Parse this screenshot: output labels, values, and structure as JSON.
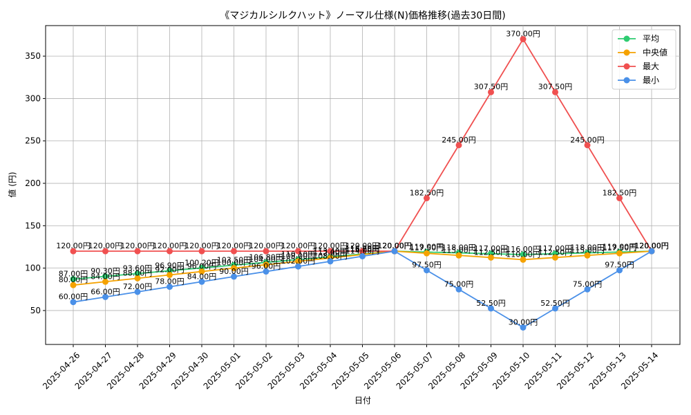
{
  "chart_data": {
    "type": "line",
    "title": "《マジカルシルクハット》ノーマル仕様(N)価格推移(過去30日間)",
    "xlabel": "日付",
    "ylabel": "値 (円)",
    "categories": [
      "2025-04-26",
      "2025-04-27",
      "2025-04-28",
      "2025-04-29",
      "2025-04-30",
      "2025-05-01",
      "2025-05-02",
      "2025-05-03",
      "2025-05-04",
      "2025-05-05",
      "2025-05-06",
      "2025-05-07",
      "2025-05-08",
      "2025-05-09",
      "2025-05-10",
      "2025-05-11",
      "2025-05-12",
      "2025-05-13",
      "2025-05-14"
    ],
    "ylim": [
      10,
      386
    ],
    "yticks": [
      50,
      100,
      150,
      200,
      250,
      300,
      350
    ],
    "grid": true,
    "legend_position": "top-right",
    "label_suffix": "円",
    "series": [
      {
        "name": "平均",
        "color": "#2ecc71",
        "values": [
          87,
          90.3,
          93.6,
          96.9,
          100.2,
          103.5,
          106.8,
          110.1,
          113.4,
          116.7,
          120,
          119,
          118,
          117,
          116,
          117,
          118,
          119,
          120
        ]
      },
      {
        "name": "中央値",
        "color": "#f5a200",
        "values": [
          80,
          84,
          88,
          92,
          96,
          100,
          104,
          108,
          112,
          116,
          120,
          117.5,
          115,
          112.5,
          110,
          112.5,
          115,
          117.5,
          120
        ]
      },
      {
        "name": "最大",
        "color": "#f05050",
        "values": [
          120,
          120,
          120,
          120,
          120,
          120,
          120,
          120,
          120,
          120,
          120,
          182.5,
          245,
          307.5,
          370,
          307.5,
          245,
          182.5,
          120
        ]
      },
      {
        "name": "最小",
        "color": "#4a90e8",
        "values": [
          60,
          66,
          72,
          78,
          84,
          90,
          96,
          102,
          108,
          114,
          120,
          97.5,
          75,
          52.5,
          30,
          52.5,
          75,
          97.5,
          120
        ]
      }
    ]
  }
}
